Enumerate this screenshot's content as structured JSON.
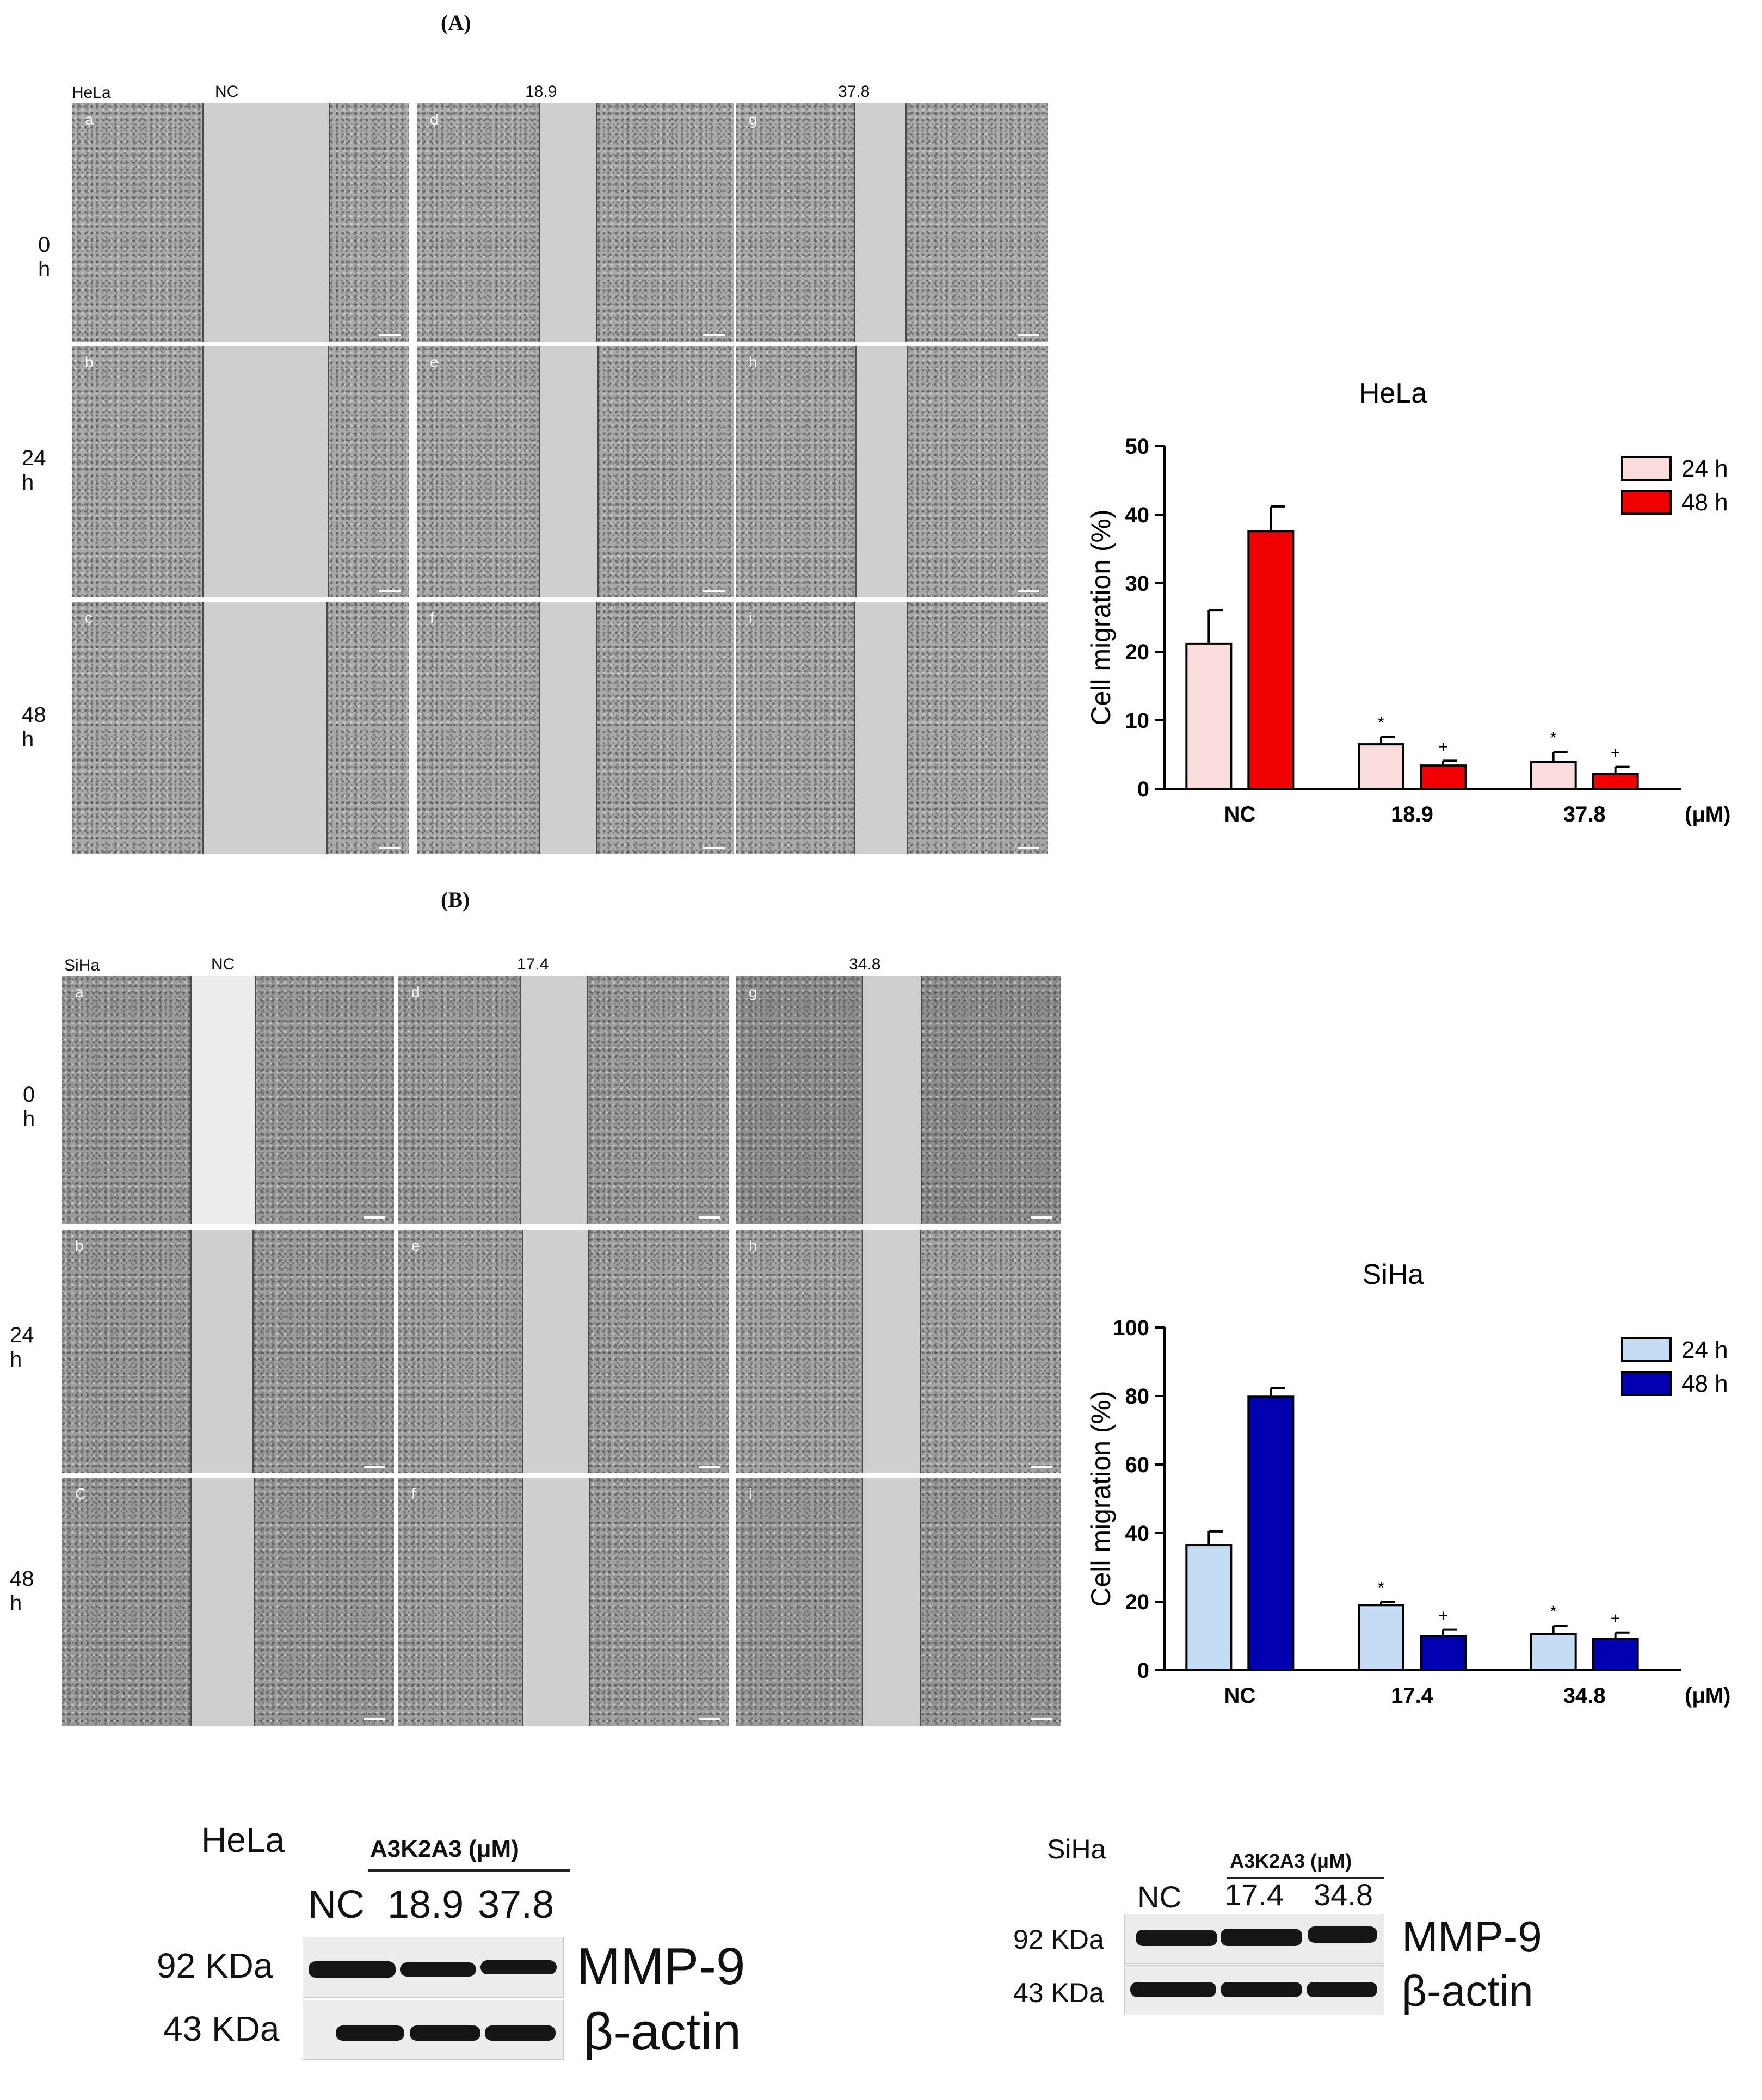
{
  "panels": {
    "a": "(A)",
    "b": "(B)"
  },
  "hela_grid": {
    "cell": "HeLa",
    "columns": [
      "NC",
      "18.9 μM",
      "37.8 μM"
    ],
    "rows": [
      "0 h",
      "24 h",
      "48 h"
    ],
    "sublabels": [
      "a",
      "d",
      "g",
      "b",
      "e",
      "h",
      "c",
      "f",
      "i"
    ]
  },
  "siha_grid": {
    "cell": "SiHa",
    "columns": [
      "NC",
      "17.4 μM",
      "34.8 μM"
    ],
    "rows": [
      "0 h",
      "24 h",
      "48 h"
    ],
    "sublabels": [
      "a",
      "d",
      "g",
      "b",
      "e",
      "h",
      "C",
      "f",
      "i"
    ]
  },
  "chart_data": [
    {
      "type": "bar",
      "title": "HeLa",
      "ylabel": "Cell migration (%)",
      "xunit": "(μM)",
      "categories": [
        "NC",
        "18.9",
        "37.8"
      ],
      "ylim": [
        0,
        50
      ],
      "yticks": [
        0,
        10,
        20,
        30,
        40,
        50
      ],
      "series": [
        {
          "name": "24 h",
          "color": "#fbdcdc",
          "values": [
            21.2,
            6.5,
            3.9
          ],
          "errors": [
            4.9,
            1.1,
            1.5
          ],
          "marks": [
            "",
            "*",
            "*"
          ]
        },
        {
          "name": "48 h",
          "color": "#f00000",
          "values": [
            37.6,
            3.4,
            2.2
          ],
          "errors": [
            3.6,
            0.7,
            1.0
          ],
          "marks": [
            "",
            "+",
            "+"
          ]
        }
      ],
      "legend": "top-right"
    },
    {
      "type": "bar",
      "title": "SiHa",
      "ylabel": "Cell migration (%)",
      "xunit": "(μM)",
      "categories": [
        "NC",
        "17.4",
        "34.8"
      ],
      "ylim": [
        0,
        100
      ],
      "yticks": [
        0,
        20,
        40,
        60,
        80,
        100
      ],
      "series": [
        {
          "name": "24 h",
          "color": "#c5dcf5",
          "values": [
            36.5,
            19.0,
            10.5
          ],
          "errors": [
            4.0,
            1.0,
            2.5
          ],
          "marks": [
            "",
            "*",
            "*"
          ]
        },
        {
          "name": "48 h",
          "color": "#0000b0",
          "values": [
            79.8,
            10.0,
            9.2
          ],
          "errors": [
            2.5,
            1.8,
            1.8
          ],
          "marks": [
            "",
            "+",
            "+"
          ]
        }
      ],
      "legend": "top-right"
    }
  ],
  "western_blots": {
    "hela": {
      "cell": "HeLa",
      "treatment": "A3K2A3 (μM)",
      "lanes": [
        "NC",
        "18.9",
        "37.8"
      ],
      "rows": [
        {
          "size": "92 KDa",
          "protein": "MMP-9"
        },
        {
          "size": "43 KDa",
          "protein": "β-actin"
        }
      ]
    },
    "siha": {
      "cell": "SiHa",
      "treatment": "A3K2A3 (μM)",
      "lanes": [
        "NC",
        "17.4",
        "34.8"
      ],
      "rows": [
        {
          "size": "92 KDa",
          "protein": "MMP-9"
        },
        {
          "size": "43 KDa",
          "protein": "β-actin"
        }
      ]
    }
  }
}
